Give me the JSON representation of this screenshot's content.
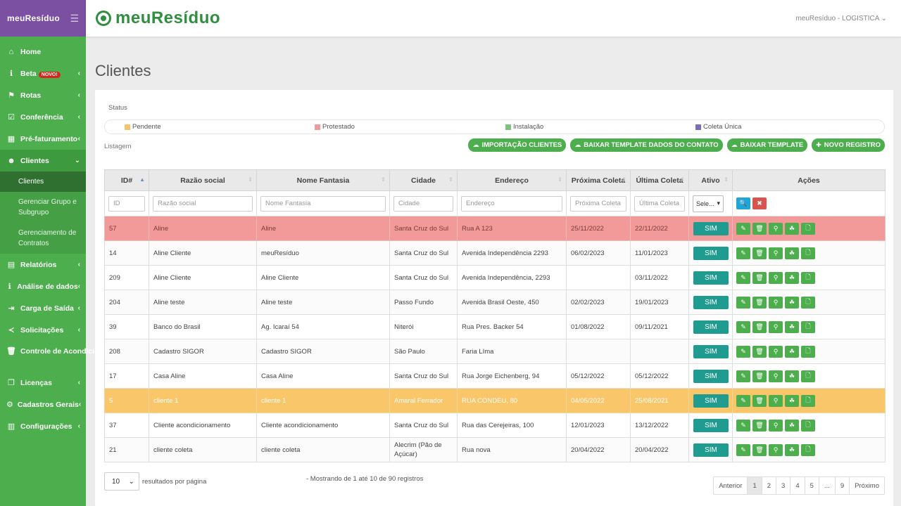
{
  "brand": {
    "sidebar_logo": "meuResíduo",
    "top_logo": "meuResíduo"
  },
  "user": "meuResíduo - LOGISTICA",
  "sidebar": {
    "items": [
      {
        "label": "Home",
        "icon": "home-icon"
      },
      {
        "label": "Beta",
        "badge": "NOVO!",
        "icon": "info-icon"
      },
      {
        "label": "Rotas",
        "icon": "signpost-icon"
      },
      {
        "label": "Conferência",
        "icon": "check-square-icon"
      },
      {
        "label": "Pré-faturamento",
        "icon": "calculator-icon"
      },
      {
        "label": "Clientes",
        "icon": "users-icon"
      },
      {
        "label": "Relatórios",
        "icon": "file-icon"
      },
      {
        "label": "Análise de dados",
        "icon": "info-icon"
      },
      {
        "label": "Carga de Saída",
        "icon": "sign-out-icon"
      },
      {
        "label": "Solicitações",
        "icon": "share-icon"
      },
      {
        "label": "Controle de Acondicionamento",
        "icon": "trash-icon"
      },
      {
        "label": "Licenças",
        "icon": "files-icon"
      },
      {
        "label": "Cadastros Gerais",
        "icon": "cogs-icon"
      },
      {
        "label": "Configurações",
        "icon": "book-icon"
      }
    ],
    "clientes_sub": [
      "Clientes",
      "Gerenciar Grupo e Subgrupo",
      "Gerenciamento de Contratos"
    ]
  },
  "page_title": "Clientes",
  "status_label": "Status",
  "legend": [
    {
      "label": "Pendente",
      "color": "#f6c26b"
    },
    {
      "label": "Protestado",
      "color": "#ef9a9a"
    },
    {
      "label": "Instalação",
      "color": "#7cc47c"
    },
    {
      "label": "Coleta Única",
      "color": "#7a6fb8"
    }
  ],
  "listagem_label": "Listagem",
  "top_buttons": [
    "IMPORTAÇÃO CLIENTES",
    "BAIXAR TEMPLATE DADOS DO CONTATO",
    "BAIXAR TEMPLATE",
    "NOVO REGISTRO"
  ],
  "columns": [
    "ID#",
    "Razão social",
    "Nome Fantasia",
    "Cidade",
    "Endereço",
    "Próxima Coleta",
    "Última Coleta",
    "Ativo",
    "Ações"
  ],
  "filters": {
    "id": "ID",
    "razao": "Razão social",
    "fantasia": "Nome Fantasia",
    "cidade": "Cidade",
    "endereco": "Endereço",
    "proxima": "Próxima Coleta",
    "ultima": "Última Coleta",
    "ativo": "Sele..."
  },
  "rows": [
    {
      "id": "57",
      "razao": "Aline",
      "fantasia": "Aline",
      "cidade": "Santa Cruz do Sul",
      "endereco": "Rua A 123",
      "proxima": "25/11/2022",
      "ultima": "22/11/2022",
      "ativo": "SIM",
      "status": "red"
    },
    {
      "id": "14",
      "razao": "Aline Cliente",
      "fantasia": "meuResíduo",
      "cidade": "Santa Cruz do Sul",
      "endereco": "Avenida Independência 2293",
      "proxima": "06/02/2023",
      "ultima": "11/01/2023",
      "ativo": "SIM",
      "status": "white"
    },
    {
      "id": "209",
      "razao": "Aline Cliente",
      "fantasia": "Aline Cliente",
      "cidade": "Santa Cruz do Sul",
      "endereco": "Avenida Independência, 2293",
      "proxima": "",
      "ultima": "03/11/2022",
      "ativo": "SIM",
      "status": "white"
    },
    {
      "id": "204",
      "razao": "Aline teste",
      "fantasia": "Aline teste",
      "cidade": "Passo Fundo",
      "endereco": "Avenida Brasil Oeste, 450",
      "proxima": "02/02/2023",
      "ultima": "19/01/2023",
      "ativo": "SIM",
      "status": "white"
    },
    {
      "id": "39",
      "razao": "Banco do Brasil",
      "fantasia": "Ag. Icaraí 54",
      "cidade": "Niterói",
      "endereco": "Rua Pres. Backer 54",
      "proxima": "01/08/2022",
      "ultima": "09/11/2021",
      "ativo": "SIM",
      "status": "white"
    },
    {
      "id": "208",
      "razao": "Cadastro SIGOR",
      "fantasia": "Cadastro SIGOR",
      "cidade": "São Paulo",
      "endereco": "Faria LIma",
      "proxima": "",
      "ultima": "",
      "ativo": "SIM",
      "status": "white"
    },
    {
      "id": "17",
      "razao": "Casa Aline",
      "fantasia": "Casa Aline",
      "cidade": "Santa Cruz do Sul",
      "endereco": "Rua Jorge Eichenberg, 94",
      "proxima": "05/12/2022",
      "ultima": "05/12/2022",
      "ativo": "SIM",
      "status": "white"
    },
    {
      "id": "5",
      "razao": "cliente 1",
      "fantasia": "cliente 1",
      "cidade": "Amaral Ferrador",
      "endereco": "RUA CONDEU, 80",
      "proxima": "04/05/2022",
      "ultima": "25/08/2021",
      "ativo": "SIM",
      "status": "yellow"
    },
    {
      "id": "37",
      "razao": "Cliente acondicionamento",
      "fantasia": "Cliente acondicionamento",
      "cidade": "Santa Cruz do Sul",
      "endereco": "Rua das Cerejeiras, 100",
      "proxima": "12/01/2023",
      "ultima": "13/12/2022",
      "ativo": "SIM",
      "status": "white"
    },
    {
      "id": "21",
      "razao": "cliente coleta",
      "fantasia": "cliente coleta",
      "cidade": "Alecrim (Pão de Açúcar)",
      "endereco": "Rua nova",
      "proxima": "20/04/2022",
      "ultima": "20/04/2022",
      "ativo": "SIM",
      "status": "white"
    }
  ],
  "page_size": "10",
  "page_size_label": "resultados por página",
  "showing": "- Mostrando de 1 até 10 de 90 registros",
  "pagination": [
    "Anterior",
    "1",
    "2",
    "3",
    "4",
    "5",
    "...",
    "9",
    "Próximo"
  ]
}
